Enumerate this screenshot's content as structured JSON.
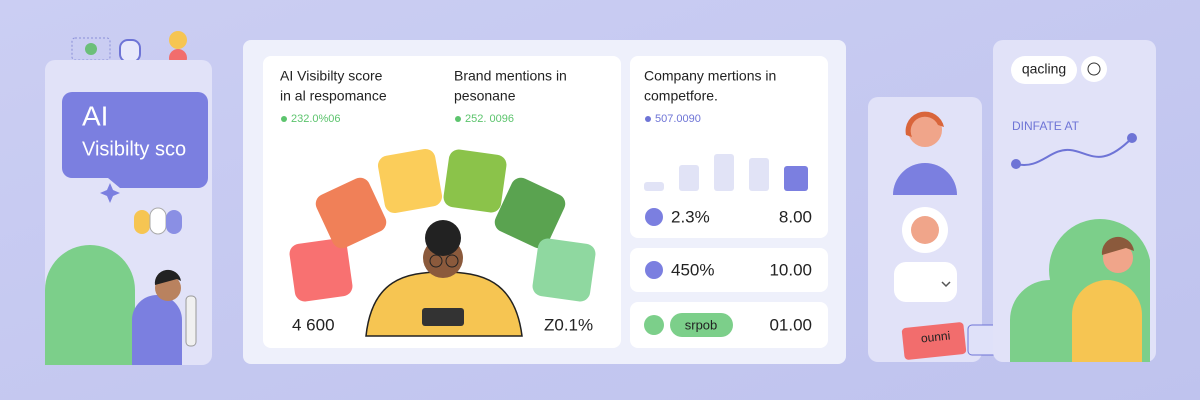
{
  "left_card": {
    "badge_title": "AI",
    "badge_subtitle": "Visibilty sco"
  },
  "metrics_card": {
    "score_label": [
      "AI Visibilty score",
      "in al respomance"
    ],
    "score_value": "232.0%06",
    "mentions_label": [
      "Brand mentions in",
      "pesonane"
    ],
    "mentions_value": "252. 0096",
    "bottom_left": "4 600",
    "bottom_right": "Z0.1%"
  },
  "company_card": {
    "label": [
      "Company mertions in",
      "competfore."
    ],
    "value": "507.0090"
  },
  "rows": [
    {
      "left": "2.3%",
      "right": "8.00"
    },
    {
      "left": "450%",
      "right": "10.00"
    },
    {
      "left": "srpob",
      "right": "01.00"
    }
  ],
  "right_panel": {
    "pill": "qacling",
    "label": "DINFATE AT"
  },
  "tag": "ounni"
}
